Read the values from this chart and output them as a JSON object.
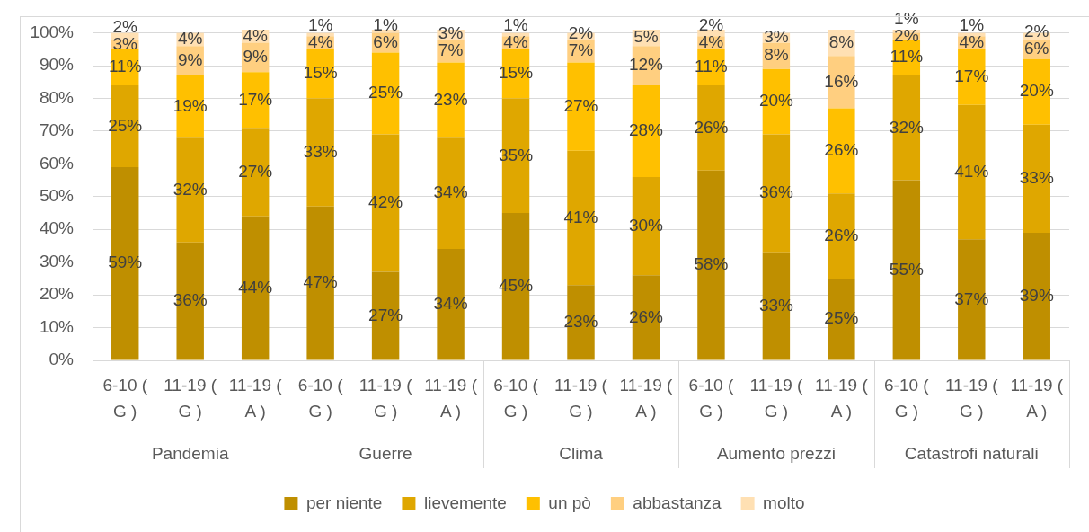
{
  "chart_data": {
    "type": "bar",
    "stacked": true,
    "categories": [
      "6-10 ( G )",
      "11-19 ( G )",
      "11-19 ( A )",
      "6-10 ( G )",
      "11-19 ( G )",
      "11-19 ( A )",
      "6-10 ( G )",
      "11-19 ( G )",
      "11-19 ( A )",
      "6-10 ( G )",
      "11-19 ( G )",
      "11-19 ( A )",
      "6-10 ( G )",
      "11-19 ( G )",
      "11-19 ( A )"
    ],
    "annotations": [
      "Pandemia",
      "Guerre",
      "Clima",
      "Aumento prezzi",
      "Catastrofi naturali"
    ],
    "series": [
      {
        "name": "per niente",
        "color": "#bf8f00",
        "values": [
          59,
          36,
          44,
          47,
          27,
          34,
          45,
          23,
          26,
          58,
          33,
          25,
          55,
          37,
          39
        ],
        "value_labels": [
          "59%",
          "36%",
          "44%",
          "47%",
          "27%",
          "34%",
          "45%",
          "23%",
          "26%",
          "58%",
          "33%",
          "25%",
          "55%",
          "37%",
          "39%"
        ]
      },
      {
        "name": "lievemente",
        "color": "#dfa700",
        "values": [
          25,
          32,
          27,
          33,
          42,
          34,
          35,
          41,
          30,
          26,
          36,
          26,
          32,
          41,
          33
        ],
        "value_labels": [
          "25%",
          "32%",
          "27%",
          "33%",
          "42%",
          "34%",
          "35%",
          "41%",
          "30%",
          "26%",
          "36%",
          "26%",
          "32%",
          "41%",
          "33%"
        ]
      },
      {
        "name": "un pò",
        "color": "#ffc000",
        "values": [
          11,
          19,
          17,
          15,
          25,
          23,
          15,
          27,
          28,
          11,
          20,
          26,
          11,
          17,
          20
        ],
        "value_labels": [
          "11%",
          "19%",
          "17%",
          "15%",
          "25%",
          "23%",
          "15%",
          "27%",
          "28%",
          "11%",
          "20%",
          "26%",
          "11%",
          "17%",
          "20%"
        ]
      },
      {
        "name": "abbastanza",
        "color": "#ffcf80",
        "values": [
          3,
          9,
          9,
          4,
          6,
          7,
          4,
          7,
          12,
          4,
          8,
          16,
          2,
          4,
          6
        ],
        "value_labels": [
          "3%",
          "9%",
          "9%",
          "4%",
          "6%",
          "7%",
          "4%",
          "7%",
          "12%",
          "4%",
          "8%",
          "16%",
          "2%",
          "4%",
          "6%"
        ]
      },
      {
        "name": "molto",
        "color": "#ffe0b3",
        "values": [
          2,
          4,
          4,
          1,
          1,
          3,
          1,
          2,
          5,
          2,
          3,
          8,
          1,
          1,
          2
        ],
        "value_labels": [
          "2%",
          "4%",
          "4%",
          "1%",
          "1%",
          "3%",
          "1%",
          "2%",
          "5%",
          "2%",
          "3%",
          "8%",
          "1%",
          "1%",
          "2%"
        ]
      }
    ],
    "ylim": [
      0,
      101
    ],
    "yticks": [
      {
        "value": 0,
        "label": "0%"
      },
      {
        "value": 10,
        "label": "10%"
      },
      {
        "value": 20,
        "label": "20%"
      },
      {
        "value": 30,
        "label": "30%"
      },
      {
        "value": 40,
        "label": "40%"
      },
      {
        "value": 50,
        "label": "50%"
      },
      {
        "value": 60,
        "label": "60%"
      },
      {
        "value": 70,
        "label": "70%"
      },
      {
        "value": 80,
        "label": "80%"
      },
      {
        "value": 90,
        "label": "90%"
      },
      {
        "value": 100,
        "label": "100%"
      }
    ],
    "grid": "y",
    "legend": "bottom"
  }
}
